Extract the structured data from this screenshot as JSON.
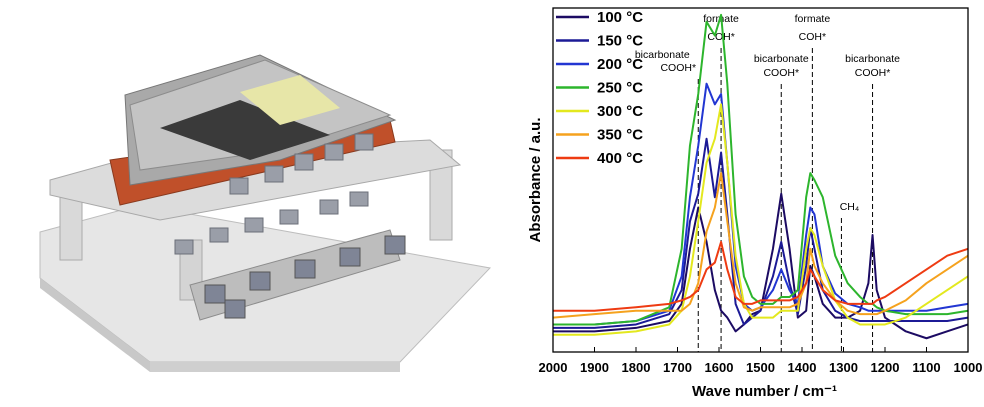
{
  "chart_data": {
    "type": "line",
    "xlabel": "Wave number / cm⁻¹",
    "ylabel": "Absorbance / a.u.",
    "x": [
      2000,
      1900,
      1800,
      1720,
      1690,
      1670,
      1650,
      1630,
      1610,
      1595,
      1580,
      1560,
      1540,
      1520,
      1500,
      1470,
      1450,
      1430,
      1410,
      1390,
      1380,
      1370,
      1350,
      1320,
      1290,
      1260,
      1240,
      1230,
      1220,
      1200,
      1150,
      1100,
      1050,
      1000
    ],
    "xlim": [
      2000,
      1000
    ],
    "xticks": [
      2000,
      1900,
      1800,
      1700,
      1600,
      1500,
      1400,
      1300,
      1200,
      1100,
      1000
    ],
    "ylim": [
      0,
      100
    ],
    "legend": "upper left",
    "series": [
      {
        "name": "100 °C",
        "color": "#1c0b63",
        "values": [
          6,
          6,
          7,
          9,
          14,
          30,
          42,
          32,
          18,
          12,
          10,
          6,
          8,
          11,
          12,
          30,
          46,
          30,
          10,
          12,
          25,
          22,
          14,
          10,
          10,
          12,
          20,
          34,
          18,
          10,
          6,
          4,
          6,
          8
        ]
      },
      {
        "name": "150 °C",
        "color": "#1c1a96",
        "values": [
          7,
          7,
          8,
          11,
          18,
          38,
          46,
          62,
          45,
          58,
          40,
          14,
          8,
          10,
          12,
          22,
          32,
          20,
          11,
          25,
          36,
          30,
          18,
          12,
          10,
          9,
          9,
          9,
          9,
          9,
          9,
          9,
          9,
          10
        ]
      },
      {
        "name": "200 °C",
        "color": "#2236d2",
        "values": [
          8,
          8,
          9,
          12,
          22,
          45,
          60,
          78,
          72,
          75,
          55,
          25,
          14,
          12,
          13,
          18,
          24,
          18,
          14,
          34,
          42,
          40,
          25,
          17,
          14,
          13,
          12,
          12,
          12,
          12,
          12,
          12,
          13,
          14
        ]
      },
      {
        "name": "250 °C",
        "color": "#2db52d",
        "values": [
          8,
          8,
          9,
          13,
          30,
          60,
          75,
          96,
          92,
          98,
          78,
          40,
          22,
          16,
          14,
          14,
          16,
          16,
          18,
          45,
          52,
          50,
          45,
          28,
          20,
          16,
          14,
          14,
          13,
          12,
          11,
          11,
          11,
          12
        ]
      },
      {
        "name": "300 °C",
        "color": "#e3e81e",
        "values": [
          5,
          5,
          6,
          8,
          12,
          22,
          38,
          55,
          62,
          72,
          55,
          28,
          14,
          10,
          10,
          10,
          12,
          12,
          12,
          30,
          36,
          34,
          25,
          15,
          10,
          8,
          8,
          8,
          8,
          8,
          10,
          14,
          18,
          22
        ]
      },
      {
        "name": "350 °C",
        "color": "#f5a21e",
        "values": [
          10,
          11,
          12,
          12,
          12,
          14,
          20,
          35,
          42,
          52,
          38,
          20,
          13,
          12,
          13,
          13,
          13,
          13,
          14,
          20,
          30,
          25,
          20,
          15,
          12,
          11,
          11,
          11,
          11,
          12,
          15,
          20,
          24,
          28
        ]
      },
      {
        "name": "400 °C",
        "color": "#ee3b12",
        "values": [
          12,
          12,
          13,
          14,
          15,
          16,
          18,
          24,
          26,
          32,
          24,
          16,
          14,
          14,
          15,
          15,
          15,
          15,
          16,
          20,
          24,
          22,
          18,
          15,
          14,
          14,
          14,
          14,
          15,
          16,
          20,
          24,
          28,
          30
        ]
      }
    ],
    "annotations": [
      {
        "x": 1650,
        "lines": [
          "bicarbonate",
          "COOH*"
        ]
      },
      {
        "x": 1595,
        "lines": [
          "formate",
          "COH*"
        ]
      },
      {
        "x": 1450,
        "lines": [
          "bicarbonate",
          "COOH*"
        ]
      },
      {
        "x": 1375,
        "lines": [
          "formate",
          "COH*"
        ]
      },
      {
        "x": 1305,
        "lines": [
          "CH₄"
        ]
      },
      {
        "x": 1230,
        "lines": [
          "bicarbonate",
          "COOH*"
        ]
      }
    ]
  }
}
